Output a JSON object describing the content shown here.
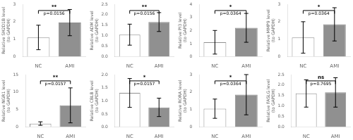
{
  "chart_data": [
    {
      "type": "bar",
      "categories": [
        "NC",
        "AMI"
      ],
      "values": [
        1.1,
        1.95
      ],
      "errors": [
        0.7,
        0.75
      ],
      "colors": [
        "#ffffff",
        "#909090"
      ],
      "ylabel": "Relative SH2D1B level\n(to GAPDH)",
      "ylim": [
        0,
        3
      ],
      "yticks": [
        0,
        1,
        2,
        3
      ],
      "annotations": [
        "**",
        "p=0.0156"
      ],
      "grid": false
    },
    {
      "type": "bar",
      "categories": [
        "NC",
        "AMI"
      ],
      "values": [
        1.05,
        1.65
      ],
      "errors": [
        0.5,
        0.45
      ],
      "colors": [
        "#ffffff",
        "#909090"
      ],
      "ylabel": "Relative ADM level\n(to GAPDH)",
      "ylim": [
        0.0,
        2.5
      ],
      "yticks": [
        {
          "value": 0,
          "label": "0.0"
        },
        0.5,
        {
          "value": 1,
          "label": "1.0"
        },
        1.5,
        {
          "value": 2,
          "label": "2.0"
        },
        2.5
      ],
      "annotations": [
        "**",
        "p=0.0156"
      ],
      "grid": false
    },
    {
      "type": "bar",
      "categories": [
        "NC",
        "AMI"
      ],
      "values": [
        1.1,
        2.2
      ],
      "errors": [
        0.9,
        1.1
      ],
      "colors": [
        "#ffffff",
        "#909090"
      ],
      "ylabel": "Relative PI3 level\n(to GAPDH)",
      "ylim": [
        0,
        4
      ],
      "yticks": [
        0,
        1,
        2,
        3,
        4
      ],
      "annotations": [
        "*",
        "p=0.0364"
      ],
      "grid": false
    },
    {
      "type": "bar",
      "categories": [
        "NC",
        "AMI"
      ],
      "values": [
        1.1,
        1.85
      ],
      "errors": [
        0.9,
        0.95
      ],
      "colors": [
        "#ffffff",
        "#909090"
      ],
      "ylabel": "Relative MMP9 level\n(to GAPDH)",
      "ylim": [
        0,
        3
      ],
      "yticks": [
        0,
        1,
        2,
        3
      ],
      "annotations": [
        "*",
        "p=0.0364"
      ],
      "grid": false
    },
    {
      "type": "bar",
      "categories": [
        "NC",
        "AMI"
      ],
      "values": [
        1.0,
        6.2
      ],
      "errors": [
        0.5,
        5.0
      ],
      "colors": [
        "#ffffff",
        "#909090"
      ],
      "ylabel": "Relative NGR1 level\n(to GAPDH)",
      "ylim": [
        0,
        15
      ],
      "yticks": [
        0,
        5,
        10,
        15
      ],
      "annotations": [
        "**",
        "p=0.0157"
      ],
      "grid": false
    },
    {
      "type": "bar",
      "categories": [
        "NC",
        "AMI"
      ],
      "values": [
        1.3,
        0.75
      ],
      "errors": [
        0.55,
        0.35
      ],
      "colors": [
        "#ffffff",
        "#909090"
      ],
      "ylabel": "Relative CBLB level\n(to GAPDH)",
      "ylim": [
        0.0,
        2.0
      ],
      "yticks": [
        {
          "value": 0,
          "label": "0.0"
        },
        0.5,
        {
          "value": 1,
          "label": "1.0"
        },
        1.5,
        {
          "value": 2,
          "label": "2.0"
        }
      ],
      "annotations": [
        "*",
        "p=0.0157"
      ],
      "grid": false
    },
    {
      "type": "bar",
      "categories": [
        "NC",
        "AMI"
      ],
      "values": [
        1.05,
        1.85
      ],
      "errors": [
        0.55,
        1.15
      ],
      "colors": [
        "#ffffff",
        "#909090"
      ],
      "ylabel": "Relative RORA level\n(to GAPDH)",
      "ylim": [
        0,
        3
      ],
      "yticks": [
        0,
        1,
        2,
        3
      ],
      "annotations": [
        "*",
        "p=0.0364"
      ],
      "grid": false
    },
    {
      "type": "bar",
      "categories": [
        "NC",
        "AMI"
      ],
      "values": [
        1.6,
        1.65
      ],
      "errors": [
        0.65,
        0.7
      ],
      "colors": [
        "#ffffff",
        "#909090"
      ],
      "ylabel": "Relative FASLG level\n(to GAPDH)",
      "ylim": [
        0.0,
        2.5
      ],
      "yticks": [
        {
          "value": 0,
          "label": "0.0"
        },
        0.5,
        {
          "value": 1,
          "label": "1.0"
        },
        1.5,
        {
          "value": 2,
          "label": "2.0"
        },
        2.5
      ],
      "annotations": [
        "ns",
        "p=0.7695"
      ],
      "grid": false
    }
  ]
}
